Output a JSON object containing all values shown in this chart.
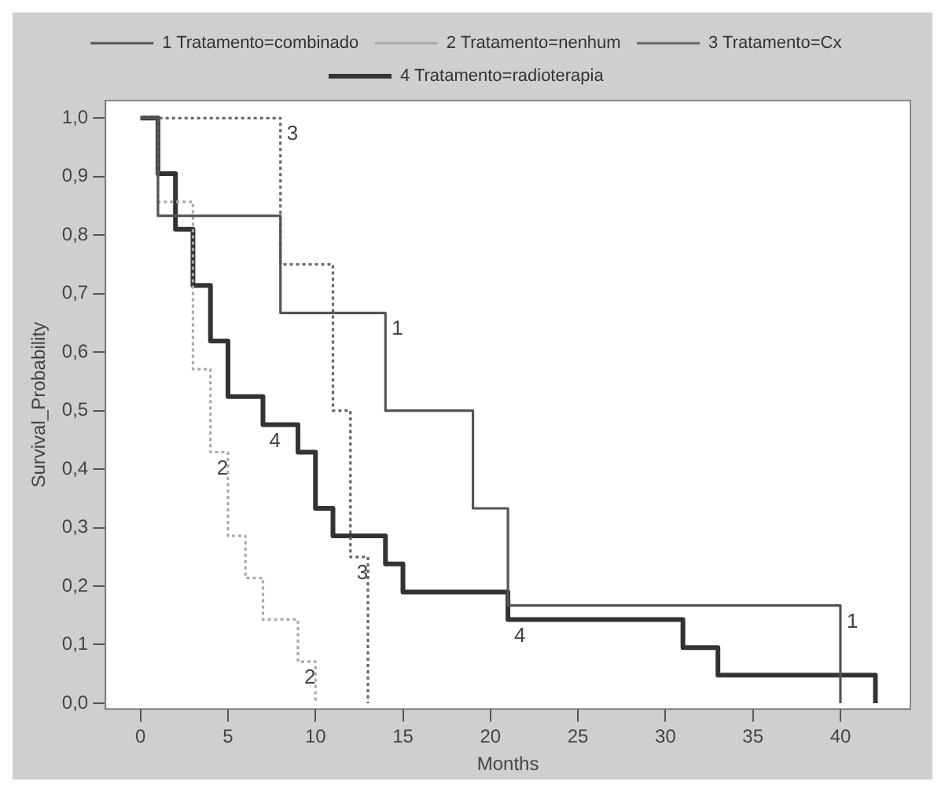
{
  "chart_data": {
    "type": "step",
    "xlabel": "Months",
    "ylabel": "Survival_Probability",
    "xlim": [
      -2,
      44
    ],
    "ylim": [
      -0.01,
      1.03
    ],
    "xticks": [
      0,
      5,
      10,
      15,
      20,
      25,
      30,
      35,
      40
    ],
    "yticks": [
      {
        "value": 0,
        "label": "0,0"
      },
      {
        "value": 0.1,
        "label": "0,1"
      },
      {
        "value": 0.2,
        "label": "0,2"
      },
      {
        "value": 0.3,
        "label": "0,3"
      },
      {
        "value": 0.4,
        "label": "0,4"
      },
      {
        "value": 0.5,
        "label": "0,5"
      },
      {
        "value": 0.6,
        "label": "0,6"
      },
      {
        "value": 0.7,
        "label": "0,7"
      },
      {
        "value": 0.8,
        "label": "0,8"
      },
      {
        "value": 0.9,
        "label": "0,9"
      },
      {
        "value": 1,
        "label": "1,0"
      }
    ],
    "grid": false,
    "legend": "top",
    "series": [
      {
        "name": "1 Tratamento=combinado",
        "color": "#555555",
        "line_style": "solid",
        "x": [
          0,
          1,
          8,
          14,
          19,
          21,
          40
        ],
        "values": [
          1,
          0.833,
          0.667,
          0.5,
          0.333,
          0.167,
          0
        ]
      },
      {
        "name": "2 Tratamento=nenhum",
        "color": "#aaaaaa",
        "line_style": "dotted",
        "x": [
          0,
          1,
          3,
          4,
          5,
          6,
          7,
          9,
          10
        ],
        "values": [
          1,
          0.857,
          0.571,
          0.429,
          0.286,
          0.214,
          0.143,
          0.071,
          0
        ]
      },
      {
        "name": "3 Tratamento=Cx",
        "color": "#666666",
        "line_style": "dotted",
        "x": [
          0,
          8,
          11,
          12,
          13
        ],
        "values": [
          1,
          0.75,
          0.5,
          0.25,
          0
        ]
      },
      {
        "name": "4 Tratamento=radioterapia",
        "color": "#333333",
        "line_style": "solid",
        "x": [
          0,
          1,
          2,
          3,
          4,
          5,
          7,
          9,
          10,
          11,
          14,
          15,
          21,
          31,
          33,
          42
        ],
        "values": [
          1,
          0.905,
          0.81,
          0.714,
          0.619,
          0.524,
          0.476,
          0.429,
          0.333,
          0.286,
          0.238,
          0.19,
          0.143,
          0.095,
          0.048,
          0
        ]
      }
    ],
    "annotations": [
      {
        "text": "1",
        "x": 14,
        "y": 0.667
      },
      {
        "text": "1",
        "x": 40,
        "y": 0.167
      },
      {
        "text": "2",
        "x": 4,
        "y": 0.429
      },
      {
        "text": "2",
        "x": 9,
        "y": 0.071
      },
      {
        "text": "3",
        "x": 8,
        "y": 1
      },
      {
        "text": "3",
        "x": 12,
        "y": 0.25
      },
      {
        "text": "4",
        "x": 7,
        "y": 0.476
      },
      {
        "text": "4",
        "x": 21,
        "y": 0.143
      }
    ]
  }
}
